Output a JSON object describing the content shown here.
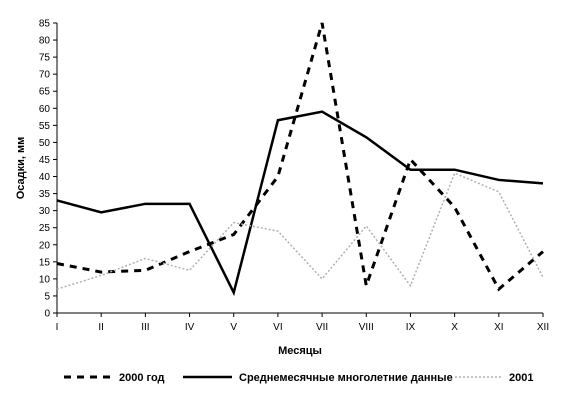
{
  "chart_data": {
    "type": "line",
    "categories": [
      "I",
      "II",
      "III",
      "IV",
      "V",
      "VI",
      "VII",
      "VIII",
      "IX",
      "X",
      "XI",
      "XII"
    ],
    "xlabel": "Месяцы",
    "ylabel": "Осадки, мм",
    "ylim": [
      0,
      85
    ],
    "yticks": [
      0,
      5,
      10,
      15,
      20,
      25,
      30,
      35,
      40,
      45,
      50,
      55,
      60,
      65,
      70,
      75,
      80,
      85
    ],
    "grid": false,
    "legend_position": "bottom",
    "series": [
      {
        "name": "2000 год",
        "style": "dashed",
        "color": "#000000",
        "values": [
          14.5,
          12,
          12.5,
          18,
          23,
          40,
          85,
          8,
          45,
          31,
          7,
          18
        ]
      },
      {
        "name": "Среднемесячные многолетние данные",
        "style": "solid",
        "color": "#000000",
        "values": [
          33,
          29.5,
          32,
          32,
          6,
          56.5,
          59,
          51.5,
          42,
          42,
          39,
          38
        ]
      },
      {
        "name": "2001",
        "style": "dotted",
        "color": "#b0b0b0",
        "values": [
          7,
          11,
          16,
          12.5,
          26.5,
          24,
          10,
          25.5,
          8,
          41,
          35.5,
          10.5
        ]
      }
    ]
  }
}
